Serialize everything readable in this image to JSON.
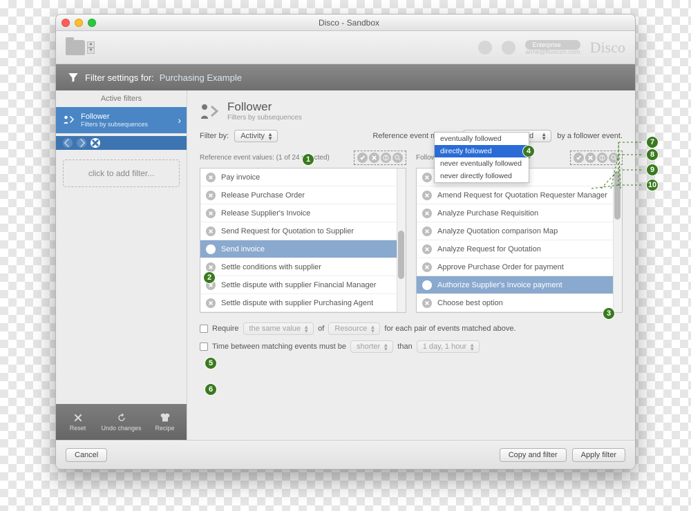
{
  "window": {
    "title": "Disco - Sandbox",
    "logo": "Disco",
    "user_plan": "Enterprise",
    "user_email": "anne@fluxicon.com"
  },
  "toolbar": {
    "label": "Filter settings for:",
    "project": "Purchasing Example"
  },
  "sidebar": {
    "header": "Active filters",
    "filter": {
      "name": "Follower",
      "sub": "Filters by subsequences"
    },
    "add": "click to add filter...",
    "foot": {
      "reset": "Reset",
      "undo": "Undo changes",
      "recipe": "Recipe"
    }
  },
  "main": {
    "title": "Follower",
    "sub": "Filters by subsequences",
    "filter_by_label": "Filter by:",
    "filter_by_value": "Activity",
    "ref_label": "Reference event must be",
    "ref_value": "eventually followed",
    "ref_suffix": "by a follower event.",
    "dropdown": [
      "eventually followed",
      "directly followed",
      "never eventually followed",
      "never directly followed"
    ],
    "left": {
      "head": "Reference event values:  (1 of 24 selected)",
      "items": [
        "Pay invoice",
        "Release Purchase Order",
        "Release Supplier's Invoice",
        "Send Request for Quotation to Supplier",
        "Send invoice",
        "Settle conditions with supplier",
        "Settle dispute with supplier Financial Manager",
        "Settle dispute with supplier Purchasing Agent"
      ],
      "selected_index": 4
    },
    "right": {
      "head": "Follower event values:",
      "items": [
        "…Requester",
        "Amend Request for Quotation Requester Manager",
        "Analyze Purchase Requisition",
        "Analyze Quotation comparison Map",
        "Analyze Request for Quotation",
        "Approve Purchase Order for payment",
        "Authorize Supplier's Invoice payment",
        "Choose best option"
      ],
      "selected_index": 6
    },
    "require": {
      "cb_label": "Require",
      "sel1": "the same value",
      "of": "of",
      "sel2": "Resource",
      "tail": "for each pair of events matched above."
    },
    "time": {
      "cb_label": "Time between matching events must be",
      "sel1": "shorter",
      "than": "than",
      "sel2": "1 day, 1 hour"
    }
  },
  "footer": {
    "cancel": "Cancel",
    "copy": "Copy and filter",
    "apply": "Apply filter"
  },
  "colors": {
    "accent": "#4a86c5",
    "callout": "#3a7a1f",
    "sel": "#8aa9ce"
  },
  "callouts": {
    "1": "1",
    "2": "2",
    "3": "3",
    "4": "4",
    "5": "5",
    "6": "6",
    "7": "7",
    "8": "8",
    "9": "9",
    "10": "10"
  }
}
